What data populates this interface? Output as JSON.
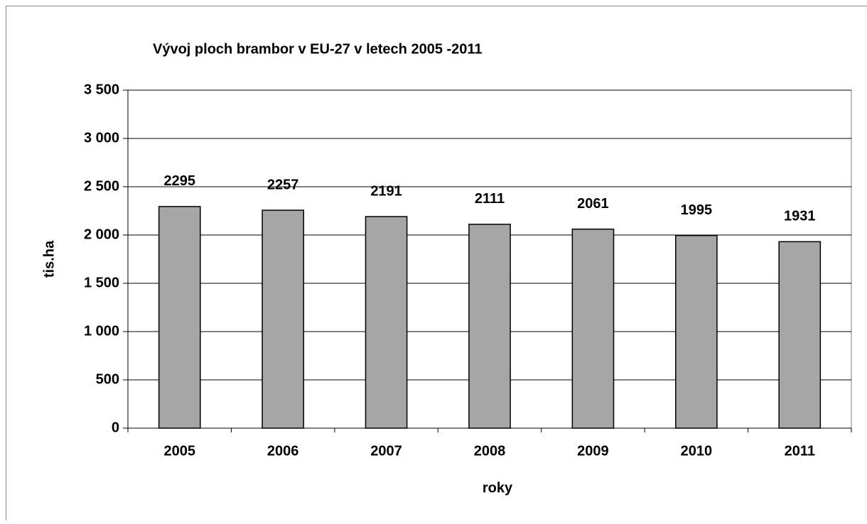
{
  "chart_data": {
    "type": "bar",
    "title": "Vývoj ploch brambor v EU-27 v letech 2005 -2011",
    "x_label": "roky",
    "y_label": "tis.ha",
    "categories": [
      "2005",
      "2006",
      "2007",
      "2008",
      "2009",
      "2010",
      "2011"
    ],
    "values": [
      2295,
      2257,
      2191,
      2111,
      2061,
      1995,
      1931
    ],
    "color": "#a6a6a6",
    "ylim": [
      0,
      3500
    ],
    "yticks": [
      0,
      500,
      {
        "value": 1000,
        "label": "1 000"
      },
      {
        "value": 1500,
        "label": "1 500"
      },
      {
        "value": 2000,
        "label": "2 000"
      },
      {
        "value": 2500,
        "label": "2 500"
      },
      {
        "value": 3000,
        "label": "3 000"
      },
      {
        "value": 3500,
        "label": "3 500"
      }
    ],
    "grid": true
  }
}
